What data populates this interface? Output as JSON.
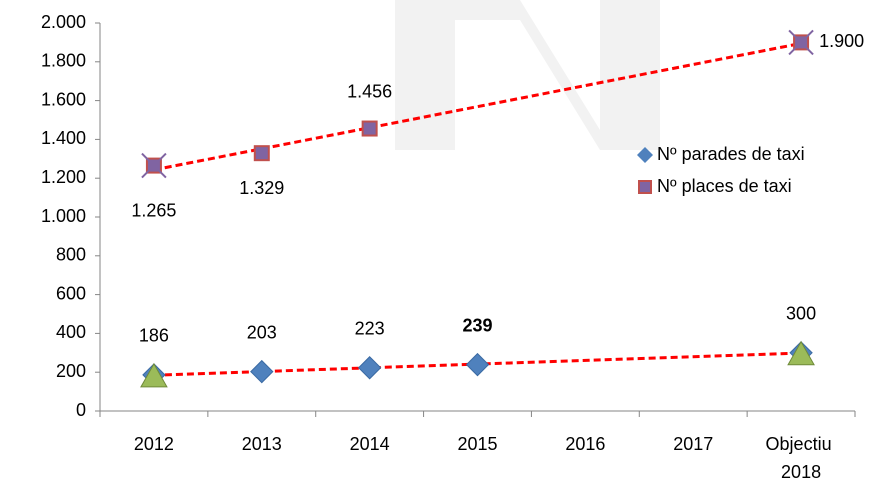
{
  "chart_data": {
    "type": "line",
    "categories": [
      "2012",
      "2013",
      "2014",
      "2015",
      "2016",
      "2017",
      "Objectiu 2018"
    ],
    "series": [
      {
        "name": "Nº parades de taxi",
        "color": "#4f81bd",
        "marker": "diamond",
        "values": [
          186,
          203,
          223,
          239,
          null,
          null,
          300
        ],
        "value_labels": [
          "186",
          "203",
          "223",
          "239",
          null,
          null,
          "300"
        ],
        "bold_labels": [
          3
        ],
        "highlight_indices": [
          0,
          6
        ],
        "highlight_color": "#9bbb59",
        "highlight_marker": "triangle"
      },
      {
        "name": "Nº places de taxi",
        "color": "#8064a2",
        "edge_color": "#c0504d",
        "marker": "square",
        "values": [
          1265,
          1329,
          1456,
          null,
          null,
          null,
          1900
        ],
        "value_labels": [
          "1.265",
          "1.329",
          "1.456",
          null,
          null,
          null,
          "1.900"
        ],
        "highlight_indices": [
          0,
          6
        ],
        "highlight_color": "#8064a2",
        "highlight_marker": "x"
      }
    ],
    "trendline": {
      "color": "#ff0000",
      "style": "dashed"
    },
    "ylim": [
      0,
      2000
    ],
    "yticks": [
      0,
      200,
      400,
      600,
      800,
      {
        "value": 1000,
        "label": "1.000"
      },
      {
        "value": 1200,
        "label": "1.200"
      },
      {
        "value": 1400,
        "label": "1.400"
      },
      {
        "value": 1600,
        "label": "1.600"
      },
      {
        "value": 1800,
        "label": "1.800"
      },
      {
        "value": 2000,
        "label": "2.000"
      }
    ],
    "legend": "right"
  }
}
